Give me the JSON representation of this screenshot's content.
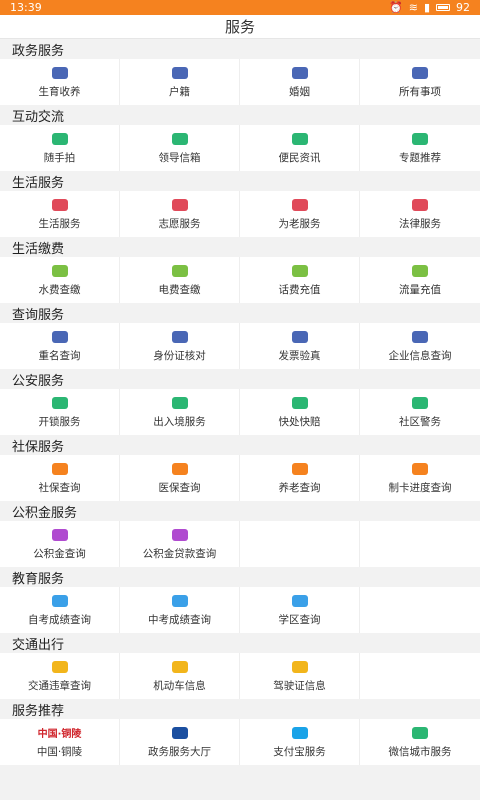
{
  "status_bar": {
    "time": "13:39",
    "battery": "92"
  },
  "header": {
    "title": "服务"
  },
  "sections": [
    {
      "title": "政务服务",
      "items": [
        {
          "label": "生育收养",
          "icon": "baby-icon",
          "color": "#4a67b5"
        },
        {
          "label": "户籍",
          "icon": "id-card-icon",
          "color": "#4a67b5"
        },
        {
          "label": "婚姻",
          "icon": "rings-icon",
          "color": "#4a67b5"
        },
        {
          "label": "所有事项",
          "icon": "documents-icon",
          "color": "#4a67b5"
        }
      ]
    },
    {
      "title": "互动交流",
      "items": [
        {
          "label": "随手拍",
          "icon": "camera-icon",
          "color": "#2bb673"
        },
        {
          "label": "领导信箱",
          "icon": "mail-icon",
          "color": "#2bb673"
        },
        {
          "label": "便民资讯",
          "icon": "message-icon",
          "color": "#2bb673"
        },
        {
          "label": "专题推荐",
          "icon": "star-bookmark-icon",
          "color": "#2bb673"
        }
      ]
    },
    {
      "title": "生活服务",
      "items": [
        {
          "label": "生活服务",
          "icon": "person-icon",
          "color": "#e04a5a"
        },
        {
          "label": "志愿服务",
          "icon": "heart-icon",
          "color": "#e04a5a"
        },
        {
          "label": "为老服务",
          "icon": "family-icon",
          "color": "#e04a5a"
        },
        {
          "label": "法律服务",
          "icon": "gavel-icon",
          "color": "#e04a5a"
        }
      ]
    },
    {
      "title": "生活缴费",
      "items": [
        {
          "label": "水费查缴",
          "icon": "water-drop-icon",
          "color": "#7bc043"
        },
        {
          "label": "电费查缴",
          "icon": "lightning-icon",
          "color": "#7bc043"
        },
        {
          "label": "话费充值",
          "icon": "phone-icon",
          "color": "#7bc043"
        },
        {
          "label": "流量充值",
          "icon": "data-icon",
          "color": "#7bc043"
        }
      ]
    },
    {
      "title": "查询服务",
      "items": [
        {
          "label": "重名查询",
          "icon": "user-search-icon",
          "color": "#4a67b5"
        },
        {
          "label": "身份证核对",
          "icon": "id-check-icon",
          "color": "#4a67b5"
        },
        {
          "label": "发票验真",
          "icon": "invoice-icon",
          "color": "#4a67b5"
        },
        {
          "label": "企业信息查询",
          "icon": "company-search-icon",
          "color": "#4a67b5"
        }
      ]
    },
    {
      "title": "公安服务",
      "items": [
        {
          "label": "开锁服务",
          "icon": "lock-icon",
          "color": "#2bb673"
        },
        {
          "label": "出入境服务",
          "icon": "airplane-icon",
          "color": "#2bb673"
        },
        {
          "label": "快处快赔",
          "icon": "shield-icon",
          "color": "#2bb673"
        },
        {
          "label": "社区警务",
          "icon": "police-icon",
          "color": "#2bb673"
        }
      ]
    },
    {
      "title": "社保服务",
      "items": [
        {
          "label": "社保查询",
          "icon": "social-security-icon",
          "color": "#f5821f"
        },
        {
          "label": "医保查询",
          "icon": "medical-icon",
          "color": "#f5821f"
        },
        {
          "label": "养老查询",
          "icon": "elderly-icon",
          "color": "#f5821f"
        },
        {
          "label": "制卡进度查询",
          "icon": "card-icon",
          "color": "#f5821f"
        }
      ]
    },
    {
      "title": "公积金服务",
      "items": [
        {
          "label": "公积金查询",
          "icon": "money-bag-icon",
          "color": "#b04bd0"
        },
        {
          "label": "公积金贷款查询",
          "icon": "loan-icon",
          "color": "#b04bd0"
        }
      ]
    },
    {
      "title": "教育服务",
      "items": [
        {
          "label": "自考成绩查询",
          "icon": "magnifier-icon",
          "color": "#3aa0e8"
        },
        {
          "label": "中考成绩查询",
          "icon": "graduation-icon",
          "color": "#3aa0e8"
        },
        {
          "label": "学区查询",
          "icon": "location-icon",
          "color": "#3aa0e8"
        }
      ]
    },
    {
      "title": "交通出行",
      "items": [
        {
          "label": "交通违章查询",
          "icon": "traffic-light-icon",
          "color": "#f2b51b"
        },
        {
          "label": "机动车信息",
          "icon": "car-icon",
          "color": "#f2b51b"
        },
        {
          "label": "驾驶证信息",
          "icon": "license-icon",
          "color": "#f2b51b"
        }
      ]
    },
    {
      "title": "服务推荐",
      "items": [
        {
          "label": "中国·铜陵",
          "icon": "tongling-logo-icon",
          "color": "#d0262d",
          "logo": "中国·铜陵"
        },
        {
          "label": "政务服务大厅",
          "icon": "gov-hall-logo-icon",
          "color": "#1b4fa0"
        },
        {
          "label": "支付宝服务",
          "icon": "alipay-icon",
          "color": "#1aa3e8"
        },
        {
          "label": "微信城市服务",
          "icon": "wechat-icon",
          "color": "#2bb673"
        }
      ]
    }
  ]
}
